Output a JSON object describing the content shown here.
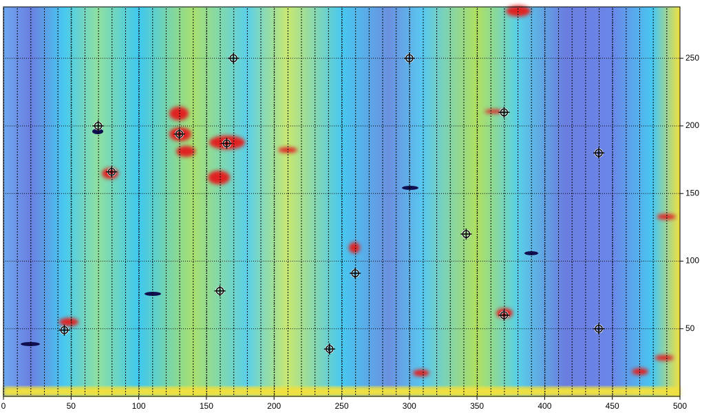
{
  "chart_data": {
    "type": "scatter",
    "x": [
      70,
      170,
      300,
      130,
      165,
      80,
      370,
      440,
      342,
      260,
      160,
      45,
      370,
      440,
      241
    ],
    "values": [
      200,
      250,
      250,
      194,
      187,
      166,
      210,
      180,
      120,
      91,
      78,
      49,
      60,
      50,
      35
    ],
    "color": "#000000",
    "xlim": [
      0,
      500
    ],
    "ylim": [
      0,
      288
    ],
    "xticks": [
      0,
      50,
      100,
      150,
      200,
      250,
      300,
      350,
      400,
      450,
      500
    ],
    "yticks": [
      50,
      100,
      150,
      200,
      250
    ],
    "grid": true
  }
}
